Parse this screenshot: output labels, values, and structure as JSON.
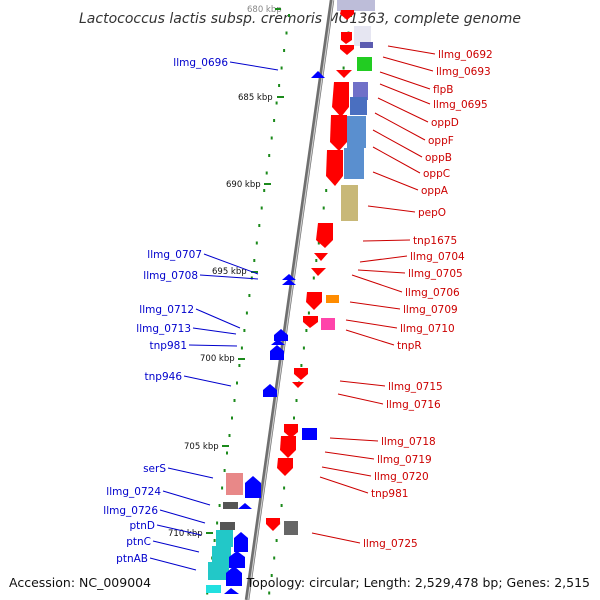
{
  "title": "Lactococcus lactis subsp. cremoris MG1363, complete genome",
  "footer": {
    "accession": "Accession: NC_009004",
    "summary": "Topology: circular; Length: 2,529,478 bp; Genes: 2,515"
  },
  "colors": {
    "forward_label": "#cc0000",
    "reverse_label": "#0000cc",
    "backbone": "#888888",
    "tick": "#1b8a1b",
    "gene_forward": "#ff0000",
    "gene_reverse": "#0000ff"
  },
  "kbp_labels": [
    "680 kbp",
    "685 kbp",
    "690 kbp",
    "695 kbp",
    "700 kbp",
    "705 kbp",
    "710 kbp"
  ],
  "forward_labels": [
    "llmg_0692",
    "llmg_0693",
    "flpB",
    "llmg_0695",
    "oppD",
    "oppF",
    "oppB",
    "oppC",
    "oppA",
    "pepO",
    "tnp1675",
    "llmg_0704",
    "llmg_0705",
    "llmg_0706",
    "llmg_0709",
    "llmg_0710",
    "tnpR",
    "llmg_0715",
    "llmg_0716",
    "llmg_0718",
    "llmg_0719",
    "llmg_0720",
    "tnp981",
    "llmg_0725"
  ],
  "reverse_labels": [
    "llmg_0696",
    "llmg_0707",
    "llmg_0708",
    "llmg_0712",
    "llmg_0713",
    "tnp981",
    "tnp946",
    "serS",
    "llmg_0724",
    "llmg_0726",
    "ptnD",
    "ptnC",
    "ptnAB"
  ]
}
